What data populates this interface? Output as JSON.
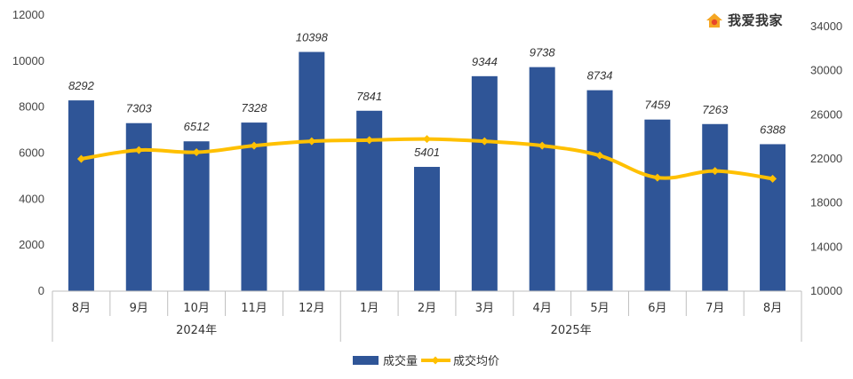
{
  "brand": {
    "name": "我爱我家",
    "icon": "house-logo-icon",
    "icon_colors": [
      "#f5a623",
      "#e8462a"
    ]
  },
  "colors": {
    "bar": "#2f5597",
    "line": "#ffc000",
    "marker": "#ffc000",
    "grid": "#d9d9d9",
    "axis": "#bfbfbf"
  },
  "chart_data": {
    "type": "bar",
    "categories": [
      "8月",
      "9月",
      "10月",
      "11月",
      "12月",
      "1月",
      "2月",
      "3月",
      "4月",
      "5月",
      "6月",
      "7月",
      "8月"
    ],
    "groups": [
      {
        "label": "2024年",
        "from": 0,
        "to": 4
      },
      {
        "label": "2025年",
        "from": 5,
        "to": 12
      }
    ],
    "series": [
      {
        "name": "成交量",
        "type": "bar",
        "axis": "left",
        "values": [
          8292,
          7303,
          6512,
          7328,
          10398,
          7841,
          5401,
          9344,
          9738,
          8734,
          7459,
          7263,
          6388
        ],
        "labels": [
          "8292",
          "7303",
          "6512",
          "7328",
          "10398",
          "7841",
          "5401",
          "9344",
          "9738",
          "8734",
          "7459",
          "7263",
          "6388"
        ]
      },
      {
        "name": "成交均价",
        "type": "line",
        "axis": "right",
        "smooth": true,
        "values": [
          22000,
          22800,
          22600,
          23200,
          23600,
          23700,
          23800,
          23600,
          23200,
          22300,
          20300,
          20900,
          20200
        ]
      }
    ],
    "left_axis": {
      "ylim": [
        0,
        12000
      ],
      "ticks": [
        "0",
        "2000",
        "4000",
        "6000",
        "8000",
        "10000",
        "12000"
      ]
    },
    "right_axis": {
      "ylim": [
        10000,
        34000
      ],
      "ticks": [
        "10000",
        "14000",
        "18000",
        "22000",
        "26000",
        "30000",
        "34000"
      ]
    },
    "grid": false,
    "legend": {
      "position": "bottom",
      "entries": [
        "成交量",
        "成交均价"
      ]
    }
  }
}
